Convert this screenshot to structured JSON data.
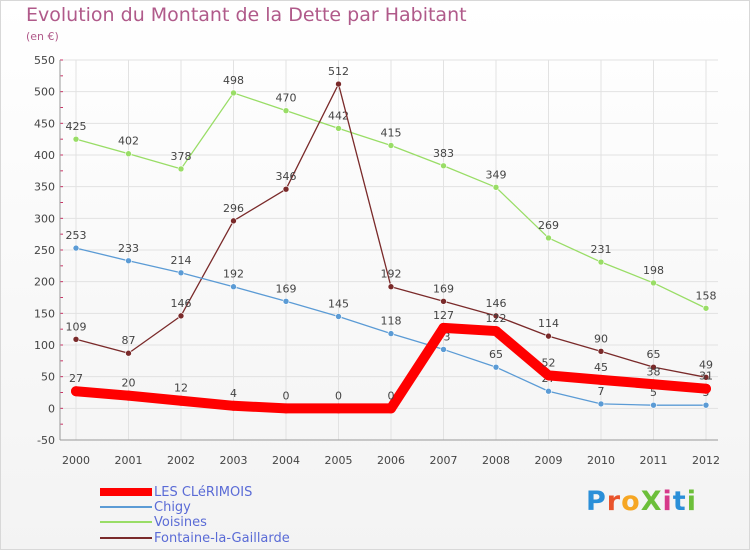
{
  "title": "Evolution du Montant de la Dette par Habitant",
  "unit_label": "(en €)",
  "logo": {
    "text": "ProXiti",
    "letter_colors": [
      "#2a8fd8",
      "#e9532b",
      "#f6a623",
      "#6cbf3a",
      "#d63a8a",
      "#2a8fd8",
      "#6cbf3a"
    ]
  },
  "chart_data": {
    "type": "line",
    "title": "Evolution du Montant de la Dette par Habitant",
    "ylabel": "(en €)",
    "xlabel": "",
    "x": [
      "2000",
      "2001",
      "2002",
      "2003",
      "2004",
      "2005",
      "2006",
      "2007",
      "2008",
      "2009",
      "2010",
      "2011",
      "2012"
    ],
    "ylim": [
      -50,
      550
    ],
    "yticks": [
      -50,
      0,
      50,
      100,
      150,
      200,
      250,
      300,
      350,
      400,
      450,
      500,
      550
    ],
    "grid": true,
    "legend_position": "bottom-left",
    "series": [
      {
        "name": "LES CLéRIMOIS",
        "color": "#ff0000",
        "values": [
          27,
          20,
          12,
          4,
          0,
          0,
          0,
          127,
          122,
          52,
          45,
          38,
          31
        ],
        "labels": [
          "27",
          "20",
          "12",
          "4",
          "0",
          "0",
          "0",
          "127",
          "122",
          "52",
          "45",
          "38",
          "31"
        ]
      },
      {
        "name": "Chigy",
        "color": "#5b9bd5",
        "values": [
          253,
          233,
          214,
          192,
          169,
          145,
          118,
          93,
          65,
          27,
          7,
          5,
          5
        ],
        "labels": [
          "253",
          "233",
          "214",
          "192",
          "169",
          "145",
          "118",
          "93",
          "65",
          "27",
          "7",
          "5",
          "5"
        ]
      },
      {
        "name": "Voisines",
        "color": "#99dd66",
        "values": [
          425,
          402,
          378,
          498,
          470,
          442,
          415,
          383,
          349,
          269,
          231,
          198,
          158
        ],
        "labels": [
          "425",
          "402",
          "378",
          "498",
          "470",
          "442",
          "415",
          "383",
          "349",
          "269",
          "231",
          "198",
          "158"
        ]
      },
      {
        "name": "Fontaine-la-Gaillarde",
        "color": "#7a2a2a",
        "values": [
          109,
          87,
          146,
          296,
          346,
          512,
          192,
          169,
          146,
          114,
          90,
          65,
          49
        ],
        "labels": [
          "109",
          "87",
          "146",
          "296",
          "346",
          "512",
          "192",
          "169",
          "146",
          "114",
          "90",
          "65",
          "49"
        ]
      }
    ]
  }
}
